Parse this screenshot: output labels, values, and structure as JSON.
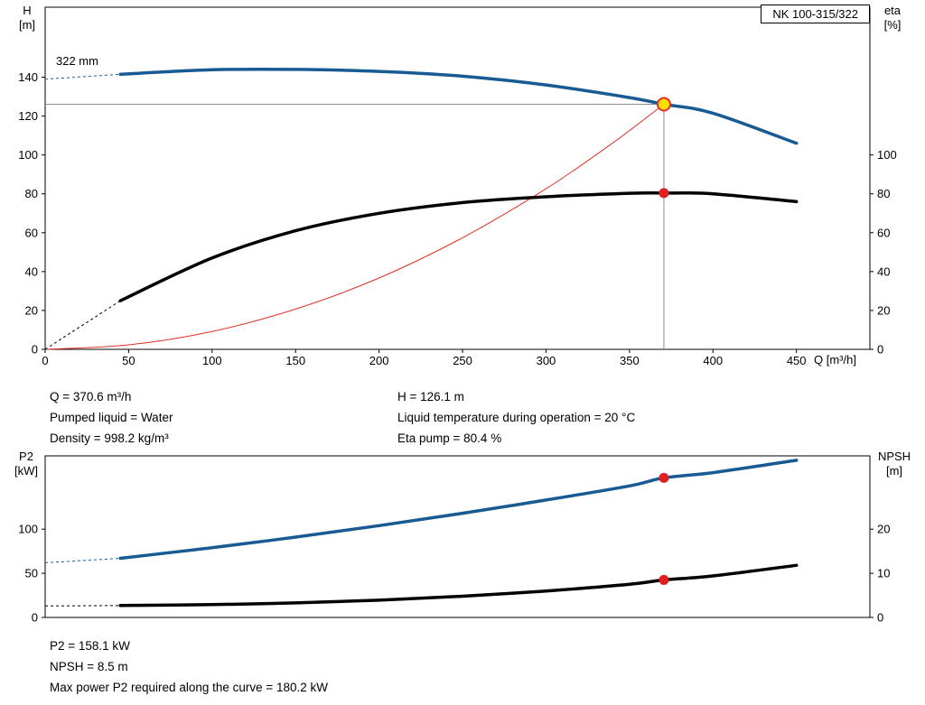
{
  "top_chart": {
    "model_box": "NK 100-315/322",
    "y_left_unit_line1": "H",
    "y_left_unit_line2": "[m]",
    "y_right_unit_line1": "eta",
    "y_right_unit_line2": "[%]",
    "x_axis_label": "Q [m³/h]",
    "impeller_label": "322 mm"
  },
  "results_top": {
    "q": "Q = 370.6 m³/h",
    "pumped_liquid": "Pumped liquid = Water",
    "density": "Density = 998.2 kg/m³",
    "h": "H = 126.1 m",
    "liquid_temperature": "Liquid temperature during operation = 20 °C",
    "eta_pump": "Eta pump = 80.4 %"
  },
  "bottom_chart": {
    "y_left_unit_line1": "P2",
    "y_left_unit_line2": "[kW]",
    "y_right_unit_line1": "NPSH",
    "y_right_unit_line2": "[m]"
  },
  "results_bottom": {
    "p2": "P2 = 158.1 kW",
    "npsh": "NPSH = 8.5 m",
    "max_power": "Max power P2 required along the curve = 180.2 kW"
  },
  "chart_data": [
    {
      "type": "line",
      "title": "NK 100-315/322",
      "xlabel": "Q [m³/h]",
      "ylabel_left": "H [m]",
      "ylabel_right": "eta [%]",
      "impeller_diameter": "322 mm",
      "xlim": [
        0,
        494
      ],
      "ylim_left": [
        0,
        176
      ],
      "ylim_right": [
        0,
        176
      ],
      "xticks": [
        0,
        50,
        100,
        150,
        200,
        250,
        300,
        350,
        400,
        450
      ],
      "yticks_left": [
        0,
        20,
        40,
        60,
        80,
        100,
        120,
        140
      ],
      "yticks_right": [
        0,
        20,
        40,
        60,
        80,
        100
      ],
      "show_x_tick_labels": true,
      "grid": false,
      "crosshair": {
        "x": 370.6,
        "y": 126.1,
        "color": "#8c8c8c"
      },
      "series": [
        {
          "name": "resistance-curve",
          "color": "#e03127",
          "width": 1,
          "axis": "left",
          "x": [
            0,
            50,
            100,
            150,
            200,
            250,
            300,
            340,
            370.6
          ],
          "y": [
            0,
            2.3,
            9.2,
            20.7,
            36.7,
            57.4,
            82.6,
            106.2,
            126.1
          ]
        },
        {
          "name": "eta-curve",
          "color": "#000000",
          "width": 3.5,
          "axis": "right",
          "dashed_until_x": 45,
          "x": [
            0,
            45,
            100,
            150,
            200,
            250,
            300,
            350,
            370.6,
            400,
            450
          ],
          "y": [
            0,
            25,
            47,
            61,
            70,
            75.5,
            78.5,
            80.3,
            80.4,
            80,
            76
          ]
        },
        {
          "name": "head-curve-322mm",
          "color": "#185b94",
          "width": 3.5,
          "axis": "left",
          "dashed_until_x": 45,
          "x": [
            0,
            45,
            100,
            150,
            200,
            250,
            300,
            350,
            370.6,
            400,
            450
          ],
          "y": [
            139,
            141.5,
            143.8,
            144,
            143,
            140.5,
            136,
            129.5,
            126.1,
            121.5,
            106
          ]
        }
      ],
      "duty_points": [
        {
          "name": "duty-point-head",
          "x": 370.6,
          "y": 126.1,
          "axis": "left",
          "r": 7,
          "fill": "#ffdf00",
          "stroke": "#e03127",
          "stroke_width": 2
        },
        {
          "name": "duty-point-eta",
          "x": 370.6,
          "y": 80.4,
          "axis": "right",
          "r": 5.5,
          "fill": "#e02020",
          "stroke": "none",
          "stroke_width": 0
        }
      ]
    },
    {
      "type": "line",
      "title": "",
      "xlabel": "",
      "ylabel_left": "P2 [kW]",
      "ylabel_right": "NPSH [m]",
      "xlim": [
        0,
        494
      ],
      "ylim_left": [
        0,
        183
      ],
      "ylim_right": [
        0,
        36.6
      ],
      "yticks_left": [
        0,
        50,
        100
      ],
      "yticks_right": [
        0,
        10,
        20
      ],
      "show_x_tick_labels": false,
      "grid": false,
      "series": [
        {
          "name": "p2-curve",
          "color": "#185b94",
          "width": 3.5,
          "axis": "left",
          "dashed_until_x": 45,
          "x": [
            0,
            45,
            100,
            150,
            200,
            250,
            300,
            350,
            370.6,
            400,
            450
          ],
          "y": [
            62,
            67,
            79,
            91,
            104,
            118,
            133,
            149,
            158.1,
            164,
            178
          ]
        },
        {
          "name": "npsh-curve",
          "color": "#000000",
          "width": 3.5,
          "axis": "right",
          "dashed_until_x": 45,
          "x": [
            0,
            45,
            100,
            150,
            200,
            250,
            300,
            350,
            370.6,
            400,
            450
          ],
          "y": [
            2.6,
            2.7,
            2.9,
            3.3,
            3.9,
            4.8,
            6.0,
            7.5,
            8.5,
            9.4,
            11.8
          ]
        }
      ],
      "duty_points": [
        {
          "name": "duty-point-p2",
          "x": 370.6,
          "y": 158.1,
          "axis": "left",
          "r": 5.5,
          "fill": "#e02020",
          "stroke": "none",
          "stroke_width": 0
        },
        {
          "name": "duty-point-npsh",
          "x": 370.6,
          "y": 8.5,
          "axis": "right",
          "r": 5.5,
          "fill": "#e02020",
          "stroke": "none",
          "stroke_width": 0
        }
      ]
    }
  ]
}
